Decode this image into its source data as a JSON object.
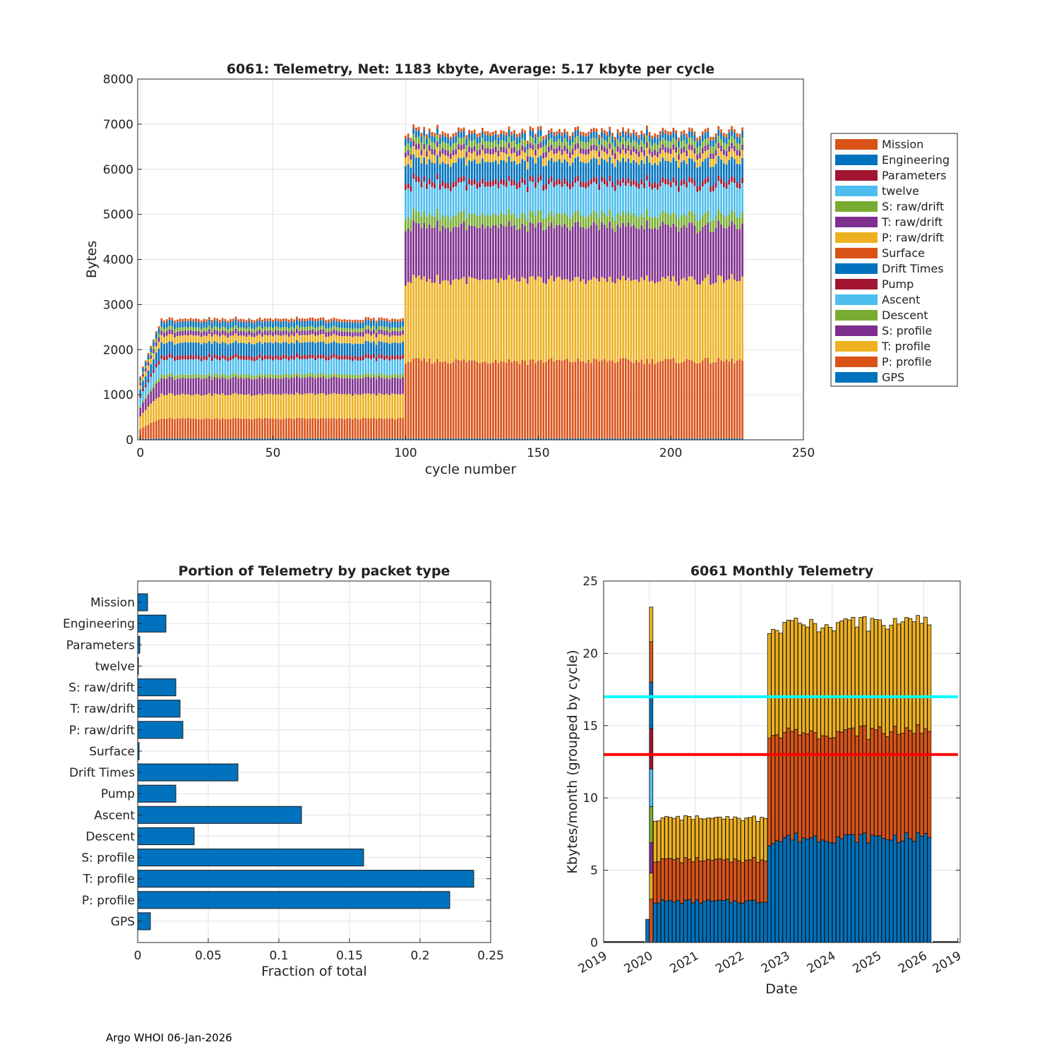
{
  "footer": "Argo WHOI 06-Jan-2026",
  "chart_data": [
    {
      "type": "bar",
      "stacked": true,
      "title": "6061: Telemetry, Net:   1183 kbyte,  Average: 5.17 kbyte per cycle",
      "xlabel": "cycle number",
      "ylabel": "Bytes",
      "xlim": [
        -1,
        250
      ],
      "ylim": [
        0,
        8000
      ],
      "xticks": [
        0,
        50,
        100,
        150,
        200,
        250
      ],
      "yticks": [
        0,
        1000,
        2000,
        3000,
        4000,
        5000,
        6000,
        7000,
        8000
      ],
      "grid": true,
      "legend_position": "outside-right",
      "n_cycles": 228,
      "legend": [
        "Mission",
        "Engineering",
        "Parameters",
        "twelve",
        "S: raw/drift",
        "T: raw/drift",
        "P: raw/drift",
        "Surface",
        "Drift Times",
        "Pump",
        "Ascent",
        "Descent",
        "S: profile",
        "T: profile",
        "P: profile",
        "GPS"
      ],
      "series_colors": {
        "GPS": "#0072bd",
        "P: profile": "#d95319",
        "T: profile": "#edb120",
        "S: profile": "#7e2f8e",
        "Descent": "#77ac30",
        "Ascent": "#4dbeee",
        "Pump": "#a2142f",
        "Drift Times": "#0072bd",
        "Surface": "#d95319",
        "P: raw/drift": "#edb120",
        "T: raw/drift": "#7e2f8e",
        "S: raw/drift": "#77ac30",
        "twelve": "#4dbeee",
        "Parameters": "#a2142f",
        "Engineering": "#0072bd",
        "Mission": "#d95319"
      },
      "phases": [
        {
          "cycles": "1-99",
          "segments": [
            {
              "name": "GPS",
              "value": 30
            },
            {
              "name": "P: profile",
              "value": 440
            },
            {
              "name": "T: profile",
              "value": 540
            },
            {
              "name": "S: profile",
              "value": 360
            },
            {
              "name": "Descent",
              "value": 80
            },
            {
              "name": "Ascent",
              "value": 330
            },
            {
              "name": "Pump",
              "value": 90
            },
            {
              "name": "Drift Times",
              "value": 280
            },
            {
              "name": "P: raw/drift",
              "value": 160
            },
            {
              "name": "T: raw/drift",
              "value": 100
            },
            {
              "name": "S: raw/drift",
              "value": 80
            },
            {
              "name": "Engineering",
              "value": 130
            },
            {
              "name": "Mission",
              "value": 60
            }
          ]
        },
        {
          "cycles": "100-227",
          "segments": [
            {
              "name": "GPS",
              "value": 30
            },
            {
              "name": "P: profile",
              "value": 1720
            },
            {
              "name": "T: profile",
              "value": 1800
            },
            {
              "name": "S: profile",
              "value": 1180
            },
            {
              "name": "Descent",
              "value": 260
            },
            {
              "name": "Ascent",
              "value": 640
            },
            {
              "name": "Pump",
              "value": 120
            },
            {
              "name": "Drift Times",
              "value": 420
            },
            {
              "name": "P: raw/drift",
              "value": 180
            },
            {
              "name": "T: raw/drift",
              "value": 120
            },
            {
              "name": "S: raw/drift",
              "value": 150
            },
            {
              "name": "Engineering",
              "value": 140
            },
            {
              "name": "Mission",
              "value": 80
            }
          ]
        }
      ]
    },
    {
      "type": "bar",
      "orientation": "horizontal",
      "title": "Portion of Telemetry by packet type",
      "xlabel": "Fraction of total",
      "ylabel": "",
      "xlim": [
        0,
        0.25
      ],
      "xticks": [
        "0",
        "0.05",
        "0.1",
        "0.15",
        "0.2",
        "0.25"
      ],
      "grid": true,
      "color": "#0072bd",
      "categories": [
        "GPS",
        "P: profile",
        "T: profile",
        "S: profile",
        "Descent",
        "Ascent",
        "Pump",
        "Drift Times",
        "Surface",
        "P: raw/drift",
        "T: raw/drift",
        "S: raw/drift",
        "twelve",
        "Parameters",
        "Engineering",
        "Mission"
      ],
      "values": [
        0.009,
        0.221,
        0.238,
        0.16,
        0.04,
        0.116,
        0.027,
        0.071,
        0.001,
        0.032,
        0.03,
        0.027,
        0.0005,
        0.0015,
        0.02,
        0.007
      ]
    },
    {
      "type": "bar",
      "stacked": true,
      "title": "6061 Monthly Telemetry",
      "xlabel": "Date",
      "ylabel": "Kbytes/month (grouped by cycle)",
      "ylim": [
        0,
        25
      ],
      "yticks": [
        0,
        5,
        10,
        15,
        20,
        25
      ],
      "xlim": [
        2019.0,
        2026.8
      ],
      "xticks": [
        "2019",
        "2020",
        "2021",
        "2022",
        "2023",
        "2024",
        "2025",
        "2026",
        "2019"
      ],
      "grid": true,
      "reference_lines": [
        {
          "y": 17,
          "color": "#00ffff"
        },
        {
          "y": 13,
          "color": "#ff0000"
        }
      ],
      "first_month": {
        "date": "2019-12",
        "segments": [
          {
            "value": 1.6,
            "color": "#0072bd"
          }
        ]
      },
      "spike_month": {
        "date": "2020-01",
        "segments": [
          {
            "value": 3.0,
            "color": "#d95319"
          },
          {
            "value": 1.8,
            "color": "#edb120"
          },
          {
            "value": 2.1,
            "color": "#7e2f8e"
          },
          {
            "value": 2.5,
            "color": "#77ac30"
          },
          {
            "value": 2.6,
            "color": "#4dbeee"
          },
          {
            "value": 2.8,
            "color": "#a2142f"
          },
          {
            "value": 3.2,
            "color": "#0072bd"
          },
          {
            "value": 2.8,
            "color": "#d95319"
          },
          {
            "value": 2.4,
            "color": "#edb120"
          }
        ]
      },
      "monthly_segments": [
        "#0072bd",
        "#d95319",
        "#edb120"
      ],
      "phases": [
        {
          "months": "2020-02 to 2022-07",
          "gps_drift": 2.9,
          "profile": 2.9,
          "other": 2.9,
          "total": 8.7
        },
        {
          "months": "2022-08 to 2026-02",
          "gps_drift": 7.4,
          "profile": 7.4,
          "other": 7.6,
          "total": 22.4
        }
      ]
    }
  ]
}
